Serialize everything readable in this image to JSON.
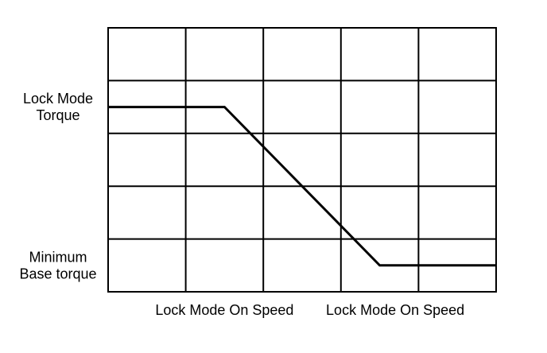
{
  "chart_data": {
    "type": "line",
    "title": "",
    "xlabel": "",
    "ylabel": "",
    "grid": true,
    "xlim": [
      0,
      5
    ],
    "ylim": [
      0,
      5
    ],
    "x_tick_labels": [
      {
        "x": 1.5,
        "label": "Lock Mode On Speed"
      },
      {
        "x": 3.7,
        "label": "Lock Mode On Speed"
      }
    ],
    "y_tick_labels": [
      {
        "y": 3.5,
        "lines": [
          "Lock Mode",
          "Torque"
        ]
      },
      {
        "y": 0.5,
        "lines": [
          "Minimum",
          "Base torque"
        ]
      }
    ],
    "series": [
      {
        "x": [
          0,
          1.5,
          3.5,
          5
        ],
        "y": [
          3.5,
          3.5,
          0.5,
          0.5
        ],
        "color": "#000000"
      }
    ]
  }
}
